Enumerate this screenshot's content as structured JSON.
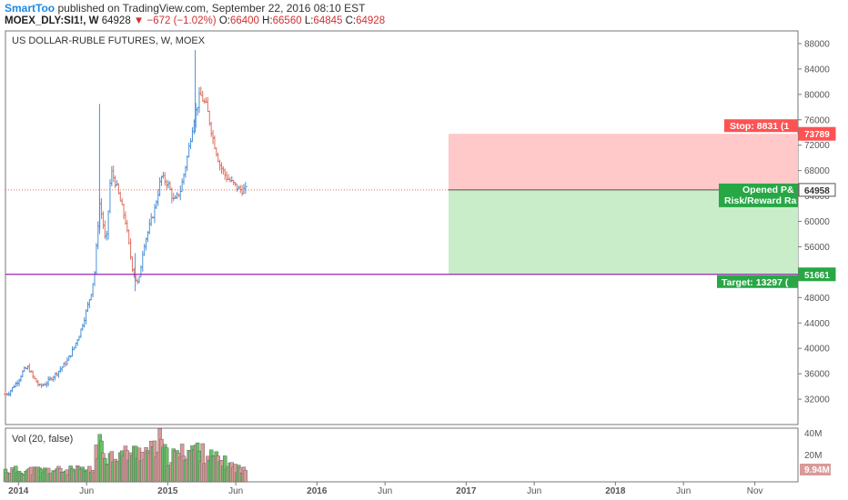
{
  "header": {
    "author": "SmartToo",
    "published": "published on TradingView.com, September 22, 2016 08:10 EST",
    "symbol": "MOEX_DLY:SI1!, W",
    "last": "64928",
    "change": "−672 (−1.02%)",
    "o_label": "O:",
    "o": "66400",
    "h_label": "H:",
    "h": "66560",
    "l_label": "L:",
    "l": "64845",
    "c_label": "C:",
    "c": "64928"
  },
  "colors": {
    "up": "#4a90d9",
    "down": "#e07060",
    "vol_up": "#6abf69",
    "vol_down": "#d99a9a",
    "support": "#9c27b0",
    "stop": "#ff5252",
    "target": "#28a745",
    "stop_zone": "#ffc9c9",
    "target_zone": "#c9ecc9"
  },
  "chart_data": {
    "type": "candlestick-ohlc",
    "title": "US DOLLAR-RUBLE FUTURES, W, MOEX",
    "x_ticks": [
      "2014",
      "Jun",
      "2015",
      "Jun",
      "2016",
      "Jun",
      "2017",
      "Jun",
      "2018",
      "Jun",
      "Nov"
    ],
    "y_ticks": [
      32000,
      36000,
      40000,
      44000,
      48000,
      52000,
      56000,
      60000,
      64000,
      68000,
      72000,
      76000,
      80000,
      84000,
      88000
    ],
    "ylim": [
      28000,
      90000
    ],
    "price_series": [
      {
        "x": 0.0,
        "v": 32800
      },
      {
        "x": 0.02,
        "v": 33000
      },
      {
        "x": 0.05,
        "v": 34000
      },
      {
        "x": 0.08,
        "v": 35000
      },
      {
        "x": 0.11,
        "v": 36500
      },
      {
        "x": 0.14,
        "v": 37000
      },
      {
        "x": 0.17,
        "v": 35500
      },
      {
        "x": 0.21,
        "v": 34000
      },
      {
        "x": 0.25,
        "v": 34500
      },
      {
        "x": 0.29,
        "v": 35500
      },
      {
        "x": 0.33,
        "v": 36500
      },
      {
        "x": 0.38,
        "v": 38000
      },
      {
        "x": 0.42,
        "v": 40000
      },
      {
        "x": 0.46,
        "v": 42500
      },
      {
        "x": 0.5,
        "v": 46000
      },
      {
        "x": 0.53,
        "v": 49000
      },
      {
        "x": 0.55,
        "v": 52000
      },
      {
        "x": 0.58,
        "v": 63000
      },
      {
        "x": 0.6,
        "v": 60000
      },
      {
        "x": 0.62,
        "v": 56000
      },
      {
        "x": 0.65,
        "v": 68000
      },
      {
        "x": 0.68,
        "v": 66000
      },
      {
        "x": 0.71,
        "v": 63000
      },
      {
        "x": 0.74,
        "v": 60000
      },
      {
        "x": 0.78,
        "v": 53000
      },
      {
        "x": 0.8,
        "v": 51000
      },
      {
        "x": 0.82,
        "v": 50000
      },
      {
        "x": 0.85,
        "v": 56000
      },
      {
        "x": 0.88,
        "v": 58500
      },
      {
        "x": 0.92,
        "v": 62000
      },
      {
        "x": 0.96,
        "v": 67000
      },
      {
        "x": 1.0,
        "v": 66000
      },
      {
        "x": 1.04,
        "v": 63000
      },
      {
        "x": 1.08,
        "v": 65000
      },
      {
        "x": 1.12,
        "v": 70000
      },
      {
        "x": 1.16,
        "v": 76000
      },
      {
        "x": 1.2,
        "v": 80000
      },
      {
        "x": 1.24,
        "v": 78000
      },
      {
        "x": 1.28,
        "v": 73000
      },
      {
        "x": 1.32,
        "v": 69000
      },
      {
        "x": 1.36,
        "v": 67000
      },
      {
        "x": 1.4,
        "v": 66000
      },
      {
        "x": 1.44,
        "v": 65000
      },
      {
        "x": 1.48,
        "v": 64928
      }
    ],
    "price_marks": [
      {
        "x": 0.58,
        "high": 78500,
        "low": 58000
      },
      {
        "x": 1.17,
        "high": 87000,
        "low": 74000
      },
      {
        "x": 0.8,
        "high": 55000,
        "low": 49000
      }
    ],
    "volume": {
      "title": "Vol (20, false)",
      "y_ticks": [
        "40M",
        "20M"
      ],
      "last_label": "9.94M",
      "ylim": [
        0,
        40000000
      ],
      "values": [
        {
          "x": 0.55,
          "v": 28000000
        },
        {
          "x": 0.58,
          "v": 34000000
        },
        {
          "x": 0.62,
          "v": 24000000
        },
        {
          "x": 0.93,
          "v": 30000000
        },
        {
          "x": 0.95,
          "v": 38000000
        },
        {
          "x": 1.0,
          "v": 22000000
        },
        {
          "x": 1.17,
          "v": 32000000
        },
        {
          "x": 1.2,
          "v": 28000000
        },
        {
          "x": 1.48,
          "v": 9940000
        }
      ]
    },
    "levels": {
      "support": 51661,
      "current": 64958,
      "stop": 73789,
      "target": 51661
    },
    "position": {
      "stop_label": "Stop: 8831 (1",
      "opened_label": "Opened P&",
      "rr_label": "Risk/Reward Ra",
      "target_label": "Target: 13297 ("
    },
    "price_tags": [
      "73789",
      "64958",
      "51661"
    ]
  }
}
